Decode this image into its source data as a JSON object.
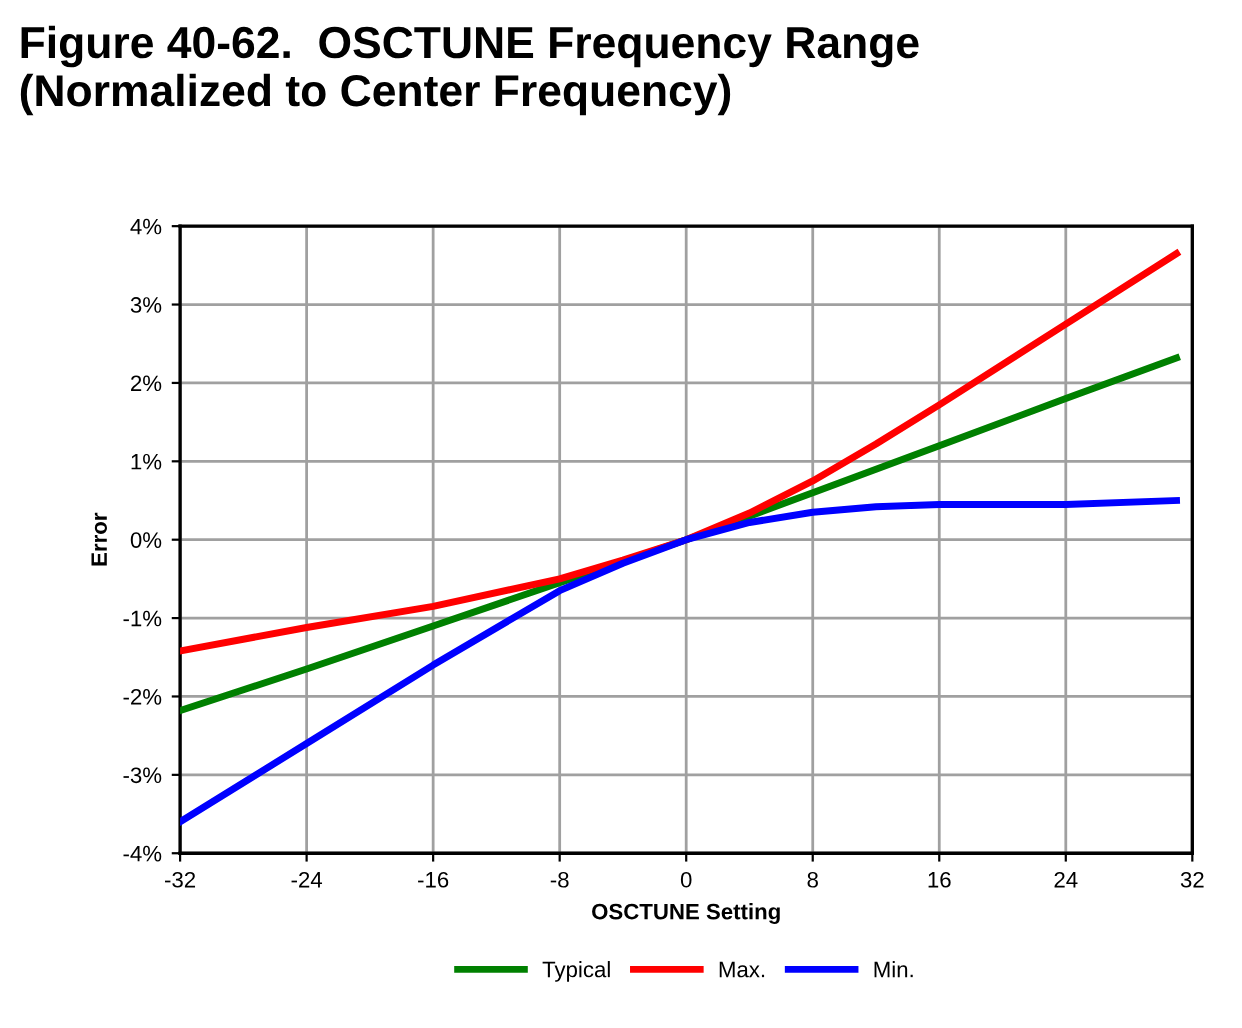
{
  "chart_data": {
    "type": "line",
    "title": "Figure 40-62.  OSCTUNE Frequency Range\n(Normalized to Center Frequency)",
    "xlabel": "OSCTUNE Setting",
    "ylabel": "Error",
    "x": [
      -32,
      -24,
      -16,
      -8,
      -4,
      0,
      4,
      8,
      12,
      16,
      24,
      31
    ],
    "series": [
      {
        "name": "Typical",
        "color": "#008000",
        "x": [
          -32,
          -24,
          -16,
          -8,
          0,
          4,
          8,
          12,
          16,
          24,
          31
        ],
        "values": [
          -2.18,
          -1.65,
          -1.1,
          -0.55,
          0,
          0.3,
          0.6,
          0.9,
          1.2,
          1.8,
          2.32
        ]
      },
      {
        "name": "Max.",
        "color": "#ff0000",
        "values": [
          -1.42,
          -1.12,
          -0.85,
          -0.5,
          -0.26,
          0,
          0.34,
          0.75,
          1.22,
          1.72,
          2.75,
          3.65
        ]
      },
      {
        "name": "Min.",
        "color": "#0000ff",
        "values": [
          -3.6,
          -2.6,
          -1.6,
          -0.65,
          -0.3,
          0,
          0.22,
          0.35,
          0.42,
          0.45,
          0.45,
          0.5
        ]
      }
    ],
    "xlim": [
      -32,
      32
    ],
    "xticks": [
      -32,
      -24,
      -16,
      -8,
      0,
      8,
      16,
      24,
      32
    ],
    "ylim": [
      -4,
      4
    ],
    "yticks": [
      {
        "value": -4,
        "label": "-4%"
      },
      {
        "value": -3,
        "label": "-3%"
      },
      {
        "value": -2,
        "label": "-2%"
      },
      {
        "value": -1,
        "label": "-1%"
      },
      {
        "value": 0,
        "label": "0%"
      },
      {
        "value": 1,
        "label": "1%"
      },
      {
        "value": 2,
        "label": "2%"
      },
      {
        "value": 3,
        "label": "3%"
      },
      {
        "value": 4,
        "label": "4%"
      }
    ],
    "grid": true,
    "legend": "bottom",
    "marker": "none",
    "line_style": "solid"
  }
}
